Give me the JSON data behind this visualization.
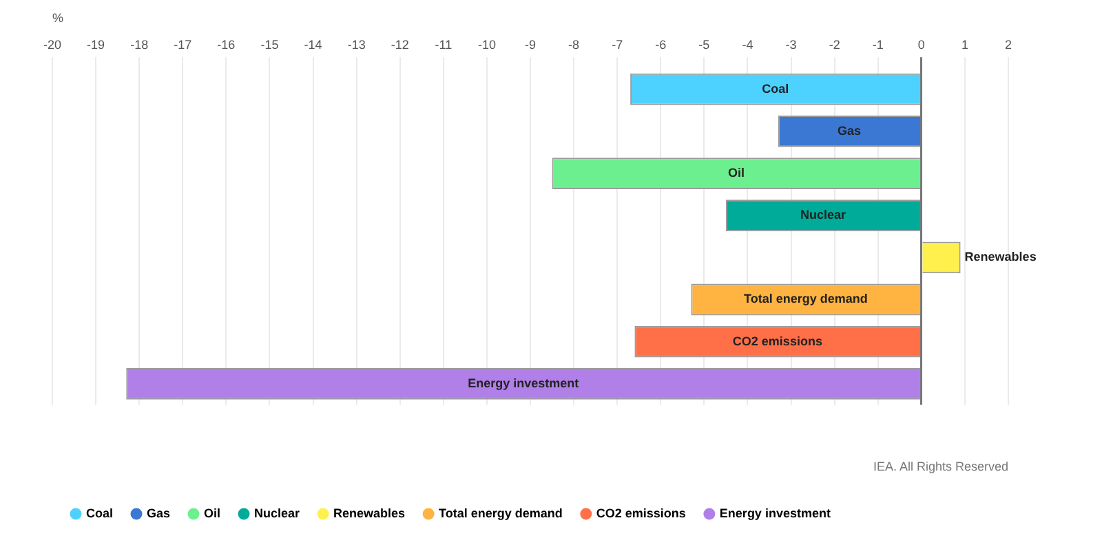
{
  "chart_data": {
    "type": "bar",
    "orientation": "horizontal",
    "xlabel": "%",
    "categories": [
      "Coal",
      "Gas",
      "Oil",
      "Nuclear",
      "Renewables",
      "Total energy demand",
      "CO2 emissions",
      "Energy investment"
    ],
    "series": [
      {
        "name": "Coal",
        "color": "#4dd2ff",
        "values": [
          -6.7,
          null,
          null,
          null,
          null,
          null,
          null,
          null
        ]
      },
      {
        "name": "Gas",
        "color": "#3b78d4",
        "values": [
          null,
          -3.3,
          null,
          null,
          null,
          null,
          null,
          null
        ]
      },
      {
        "name": "Oil",
        "color": "#6cf08f",
        "values": [
          null,
          null,
          -8.5,
          null,
          null,
          null,
          null,
          null
        ]
      },
      {
        "name": "Nuclear",
        "color": "#00ab9a",
        "values": [
          null,
          null,
          null,
          -4.5,
          null,
          null,
          null,
          null
        ]
      },
      {
        "name": "Renewables",
        "color": "#fff04d",
        "values": [
          null,
          null,
          null,
          null,
          0.9,
          null,
          null,
          null
        ]
      },
      {
        "name": "Total energy demand",
        "color": "#ffb340",
        "values": [
          null,
          null,
          null,
          null,
          null,
          -5.3,
          null,
          null
        ]
      },
      {
        "name": "CO2 emissions",
        "color": "#ff7048",
        "values": [
          null,
          null,
          null,
          null,
          null,
          null,
          -6.6,
          null
        ]
      },
      {
        "name": "Energy investment",
        "color": "#b07fe8",
        "values": [
          null,
          null,
          null,
          null,
          null,
          null,
          null,
          -18.3
        ]
      }
    ],
    "xlim": [
      -20,
      2
    ],
    "xticks": [
      -20,
      -19,
      -18,
      -17,
      -16,
      -15,
      -14,
      -13,
      -12,
      -11,
      -10,
      -9,
      -8,
      -7,
      -6,
      -5,
      -4,
      -3,
      -2,
      -1,
      0,
      1,
      2
    ],
    "grid": "x",
    "legend": "bottom",
    "annotations": [
      "IEA. All Rights Reserved"
    ]
  }
}
